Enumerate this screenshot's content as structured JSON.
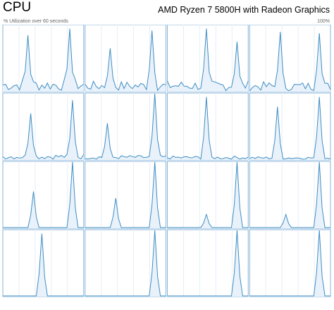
{
  "header": {
    "title": "CPU",
    "model": "AMD Ryzen 7 5800H with Radeon Graphics",
    "subtitle": "% Utilization over 60 seconds",
    "max_label": "100%"
  },
  "colors": {
    "line": "#3f8dc4",
    "fill": "#e9f2fa",
    "border": "#88b6d9",
    "grid": "#e6eef6"
  },
  "cores": [
    {
      "spikes": [
        [
          9,
          85
        ],
        [
          24,
          95
        ]
      ],
      "noise": 18
    },
    {
      "spikes": [
        [
          9,
          65
        ],
        [
          24,
          92
        ]
      ],
      "noise": 15
    },
    {
      "spikes": [
        [
          14,
          95
        ],
        [
          25,
          75
        ]
      ],
      "noise": 16
    },
    {
      "spikes": [
        [
          11,
          90
        ],
        [
          25,
          88
        ]
      ],
      "noise": 14
    },
    {
      "spikes": [
        [
          10,
          70
        ],
        [
          25,
          90
        ]
      ],
      "noise": 8
    },
    {
      "spikes": [
        [
          8,
          55
        ],
        [
          25,
          100
        ]
      ],
      "noise": 6
    },
    {
      "spikes": [
        [
          14,
          95
        ]
      ],
      "noise": 5
    },
    {
      "spikes": [
        [
          10,
          80
        ],
        [
          25,
          95
        ]
      ],
      "noise": 4
    },
    {
      "spikes": [
        [
          11,
          55
        ],
        [
          25,
          100
        ]
      ],
      "noise": 0
    },
    {
      "spikes": [
        [
          11,
          45
        ],
        [
          25,
          100
        ]
      ],
      "noise": 0
    },
    {
      "spikes": [
        [
          14,
          20
        ],
        [
          25,
          100
        ]
      ],
      "noise": 0
    },
    {
      "spikes": [
        [
          13,
          20
        ],
        [
          25,
          100
        ]
      ],
      "noise": 0
    },
    {
      "spikes": [
        [
          14,
          95
        ]
      ],
      "noise": 0
    },
    {
      "spikes": [
        [
          25,
          100
        ]
      ],
      "noise": 0
    },
    {
      "spikes": [
        [
          25,
          100
        ]
      ],
      "noise": 0
    },
    {
      "spikes": [
        [
          25,
          100
        ]
      ],
      "noise": 0
    }
  ]
}
